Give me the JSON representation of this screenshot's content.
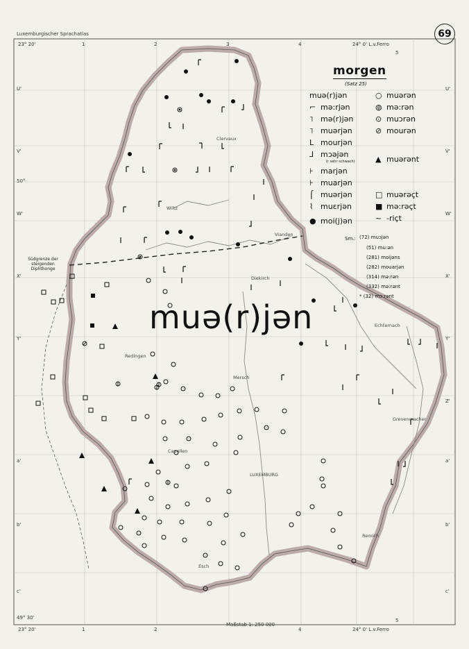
{
  "header": {
    "atlas_title": "Luxemburgischer Sprachatlas",
    "page_number": "69"
  },
  "map_title": "morgen",
  "map_subtitle": "(Satz 25)",
  "big_label": "muə(r)jən",
  "grid_top": {
    "left_degree": "23° 20'",
    "cols": [
      "1",
      "2",
      "3",
      "4",
      "5"
    ],
    "right_degree": "24° 0' L.v.Ferro"
  },
  "grid_bottom": {
    "left_degree": "23° 20'",
    "cols": [
      "1",
      "2",
      "3",
      "4",
      "5"
    ],
    "right_degree": "24° 0' L.v.Ferro",
    "scale": "Maßstab 1: 250 000",
    "corner": "49° 30'"
  },
  "grid_left": [
    "U'",
    "V'",
    "50°",
    "W'",
    "X'",
    "Y'",
    "a'",
    "b'",
    "c'"
  ],
  "grid_right": [
    "U'",
    "V'",
    "W'",
    "X'",
    "Y'",
    "Z'",
    "a'",
    "b'",
    "c'"
  ],
  "legend_left": [
    {
      "symbol": "",
      "text": "muə(r)jən"
    },
    {
      "symbol": "⌐",
      "text": "mə:rjən"
    },
    {
      "symbol": "˥",
      "text": "mə(r)jən"
    },
    {
      "symbol": "˥",
      "text": "muərjən"
    },
    {
      "symbol": "L",
      "text": "mourjən"
    },
    {
      "symbol": "⅃",
      "text": "mɔəjən"
    },
    {
      "symbol": "⊦",
      "text": "marjən"
    },
    {
      "symbol": "⊦",
      "text": "muarjən"
    },
    {
      "symbol": "⌠",
      "text": "muərjən"
    },
    {
      "symbol": "⌇",
      "text": "muɛrjən"
    },
    {
      "symbol": "●",
      "text": "moi(j)ən"
    }
  ],
  "legend_note": "(r sehr schwach)",
  "legend_right": [
    {
      "symbol": "○",
      "text": "muərən"
    },
    {
      "symbol": "◍",
      "text": "mə:rən"
    },
    {
      "symbol": "⊙",
      "text": "muɔrən"
    },
    {
      "symbol": "⊘",
      "text": "mourən"
    },
    {
      "symbol": "▲",
      "text": "muərənt"
    },
    {
      "symbol": "□",
      "text": "muərəçt"
    },
    {
      "symbol": "■",
      "text": "mə:rəçt"
    },
    {
      "symbol": "~",
      "text": "-riçt"
    }
  ],
  "special_forms": {
    "prefix": "Sm.:",
    "items": [
      {
        "num": "72",
        "text": "muɔjən"
      },
      {
        "num": "51",
        "text": "mu:ən"
      },
      {
        "num": "281",
        "text": "moijəns"
      },
      {
        "num": "282",
        "text": "mouarjən"
      },
      {
        "num": "314",
        "text": "mə:rən"
      },
      {
        "num": "332",
        "text": "mə:rənt"
      },
      {
        "num": "32",
        "text": "mɔ:rənt",
        "star": "*"
      }
    ]
  },
  "places": [
    "Clervaux",
    "Wiltz",
    "Vianden",
    "Diekirch",
    "Echternach",
    "Redingen",
    "Mersch",
    "Capellen",
    "LUXEMBURG",
    "Grevenmacher",
    "Remich",
    "Esch"
  ],
  "south_boundary_label": "Südgrenze der steigenden Diphthonge",
  "colors": {
    "paper": "#f3f1ec",
    "border": "#b9aaa8",
    "ink": "#111111",
    "grid": "#bbbbbb",
    "river": "#888888"
  }
}
